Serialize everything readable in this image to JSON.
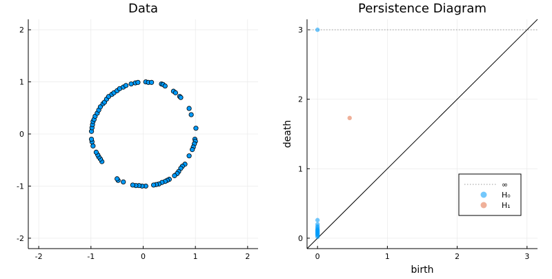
{
  "chart_data": [
    {
      "type": "scatter",
      "title": "Data",
      "xlabel": "",
      "ylabel": "",
      "xlim": [
        -2.2,
        2.2
      ],
      "ylim": [
        -2.2,
        2.2
      ],
      "xticks": [
        -2,
        -1,
        0,
        1,
        2
      ],
      "yticks": [
        -2,
        -1,
        0,
        1,
        2
      ],
      "xtick_labels": [
        "-2",
        "-1",
        "0",
        "1",
        "2"
      ],
      "ytick_labels": [
        "-2",
        "-1",
        "0",
        "1",
        "2"
      ],
      "grid": true,
      "legend": "none",
      "color": "#009AF9",
      "series": [
        {
          "x": [
            0.05,
            0.1,
            0.16,
            0.35,
            0.38,
            0.42,
            0.58,
            0.62,
            0.7,
            0.72,
            0.88,
            0.92,
            1.01,
            0.99,
            1.0,
            0.98,
            0.96,
            0.94,
            0.88,
            0.8,
            0.75,
            0.72,
            0.68,
            0.65,
            0.6,
            0.5,
            0.46,
            0.42,
            0.36,
            0.3,
            0.25,
            0.2,
            0.05,
            -0.02,
            -0.08,
            -0.14,
            -0.2,
            -0.38,
            -0.48,
            -0.5,
            -0.79,
            -0.82,
            -0.85,
            -0.87,
            -0.9,
            -0.96,
            -0.98,
            -0.99,
            -0.99,
            -0.98,
            -0.97,
            -0.96,
            -0.94,
            -0.92,
            -0.88,
            -0.85,
            -0.82,
            -0.77,
            -0.74,
            -0.7,
            -0.66,
            -0.6,
            -0.56,
            -0.5,
            -0.45,
            -0.38,
            -0.33,
            -0.23,
            -0.15,
            -0.1
          ],
          "y": [
            1.0,
            0.99,
            0.99,
            0.96,
            0.95,
            0.92,
            0.82,
            0.79,
            0.72,
            0.7,
            0.49,
            0.37,
            0.11,
            -0.1,
            -0.14,
            -0.19,
            -0.25,
            -0.3,
            -0.42,
            -0.58,
            -0.62,
            -0.66,
            -0.72,
            -0.76,
            -0.8,
            -0.87,
            -0.89,
            -0.91,
            -0.93,
            -0.96,
            -0.97,
            -0.98,
            -1.0,
            -1.0,
            -0.99,
            -0.99,
            -0.98,
            -0.92,
            -0.89,
            -0.86,
            -0.53,
            -0.48,
            -0.44,
            -0.4,
            -0.35,
            -0.23,
            -0.15,
            -0.1,
            0.05,
            0.12,
            0.18,
            0.24,
            0.28,
            0.34,
            0.4,
            0.46,
            0.52,
            0.58,
            0.61,
            0.67,
            0.72,
            0.76,
            0.79,
            0.83,
            0.87,
            0.9,
            0.93,
            0.96,
            0.98,
            0.99
          ]
        }
      ]
    },
    {
      "type": "scatter",
      "title": "Persistence Diagram",
      "xlabel": "birth",
      "ylabel": "death",
      "xlim": [
        -0.15,
        3.15
      ],
      "ylim": [
        -0.15,
        3.15
      ],
      "xticks": [
        0,
        1,
        2,
        3
      ],
      "yticks": [
        0,
        1,
        2,
        3
      ],
      "xtick_labels": [
        "0",
        "1",
        "2",
        "3"
      ],
      "ytick_labels": [
        "0",
        "1",
        "2",
        "3"
      ],
      "grid": true,
      "legend": "bottom-right",
      "diagonal": true,
      "infinity_line": {
        "y": 3.0,
        "label": "∞",
        "color": "#999999"
      },
      "series": [
        {
          "name": "H₀",
          "color": "#009AF9",
          "x": [
            0,
            0,
            0,
            0,
            0,
            0,
            0,
            0,
            0,
            0,
            0,
            0,
            0,
            0,
            0,
            0
          ],
          "y": [
            3.0,
            0.26,
            0.2,
            0.17,
            0.15,
            0.13,
            0.12,
            0.11,
            0.1,
            0.09,
            0.08,
            0.07,
            0.06,
            0.05,
            0.04,
            0.02
          ]
        },
        {
          "name": "H₁",
          "color": "#E26F46",
          "x": [
            0.46
          ],
          "y": [
            1.73
          ]
        }
      ]
    }
  ]
}
